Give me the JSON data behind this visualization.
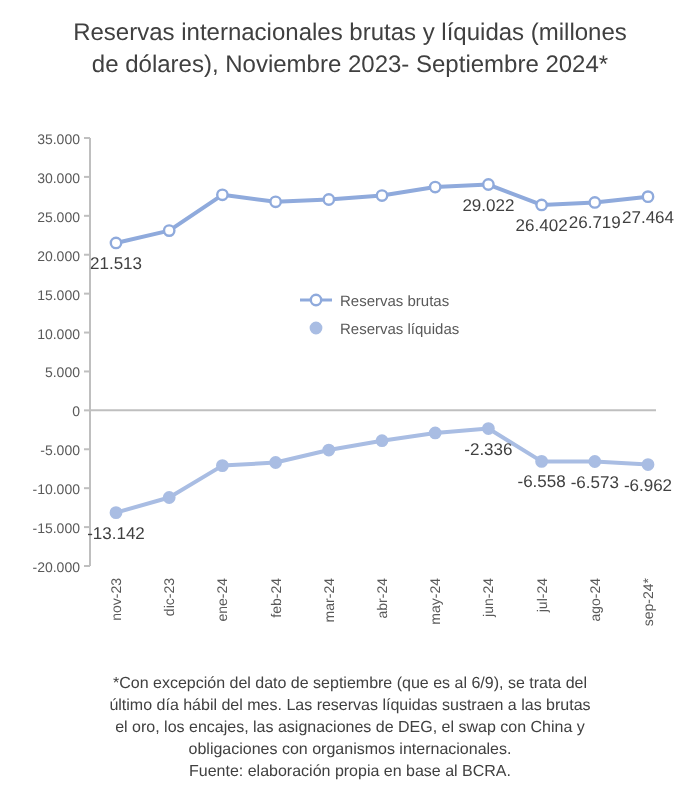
{
  "chart_data": {
    "type": "line",
    "title": "Reservas internacionales brutas y líquidas (millones de dólares), Noviembre 2023-  Septiembre 2024*",
    "categories": [
      "nov-23",
      "dic-23",
      "ene-24",
      "feb-24",
      "mar-24",
      "abr-24",
      "may-24",
      "jun-24",
      "jul-24",
      "ago-24",
      "sep-24*"
    ],
    "series": [
      {
        "name": "Reservas brutas",
        "color": "#8faadc",
        "values": [
          21513,
          23100,
          27700,
          26800,
          27100,
          27600,
          28700,
          29022,
          26402,
          26719,
          27464
        ],
        "value_labels": [
          "21.513",
          null,
          null,
          null,
          null,
          null,
          null,
          "29.022",
          "26.402",
          "26.719",
          "27.464"
        ]
      },
      {
        "name": "Reservas líquidas",
        "color": "#a9bde3",
        "values": [
          -13142,
          -11200,
          -7100,
          -6700,
          -5100,
          -3900,
          -2900,
          -2336,
          -6558,
          -6573,
          -6962
        ],
        "value_labels": [
          "-13.142",
          null,
          null,
          null,
          null,
          null,
          null,
          "-2.336",
          "-6.558",
          "-6.573",
          "-6.962"
        ]
      }
    ],
    "ylim": [
      -20000,
      35000
    ],
    "yticks": [
      {
        "value": -20000,
        "label": "-20.000"
      },
      {
        "value": -15000,
        "label": "-15.000"
      },
      {
        "value": -10000,
        "label": "-10.000"
      },
      {
        "value": -5000,
        "label": "-5.000"
      },
      {
        "value": 0,
        "label": "0"
      },
      {
        "value": 5000,
        "label": "5.000"
      },
      {
        "value": 10000,
        "label": "10.000"
      },
      {
        "value": 15000,
        "label": "15.000"
      },
      {
        "value": 20000,
        "label": "20.000"
      },
      {
        "value": 25000,
        "label": "25.000"
      },
      {
        "value": 30000,
        "label": "30.000"
      },
      {
        "value": 35000,
        "label": "35.000"
      }
    ],
    "legend": "center",
    "marker": "circle",
    "line_style": "solid",
    "annotations": [
      "*Con excepción del dato de septiembre (que es al 6/9), se trata del último día hábil del mes. Las reservas líquidas sustraen a las brutas el oro, los encajes, las asignaciones de DEG, el swap con China y obligaciones con organismos internacionales.",
      "Fuente: elaboración propia en base al BCRA."
    ]
  }
}
